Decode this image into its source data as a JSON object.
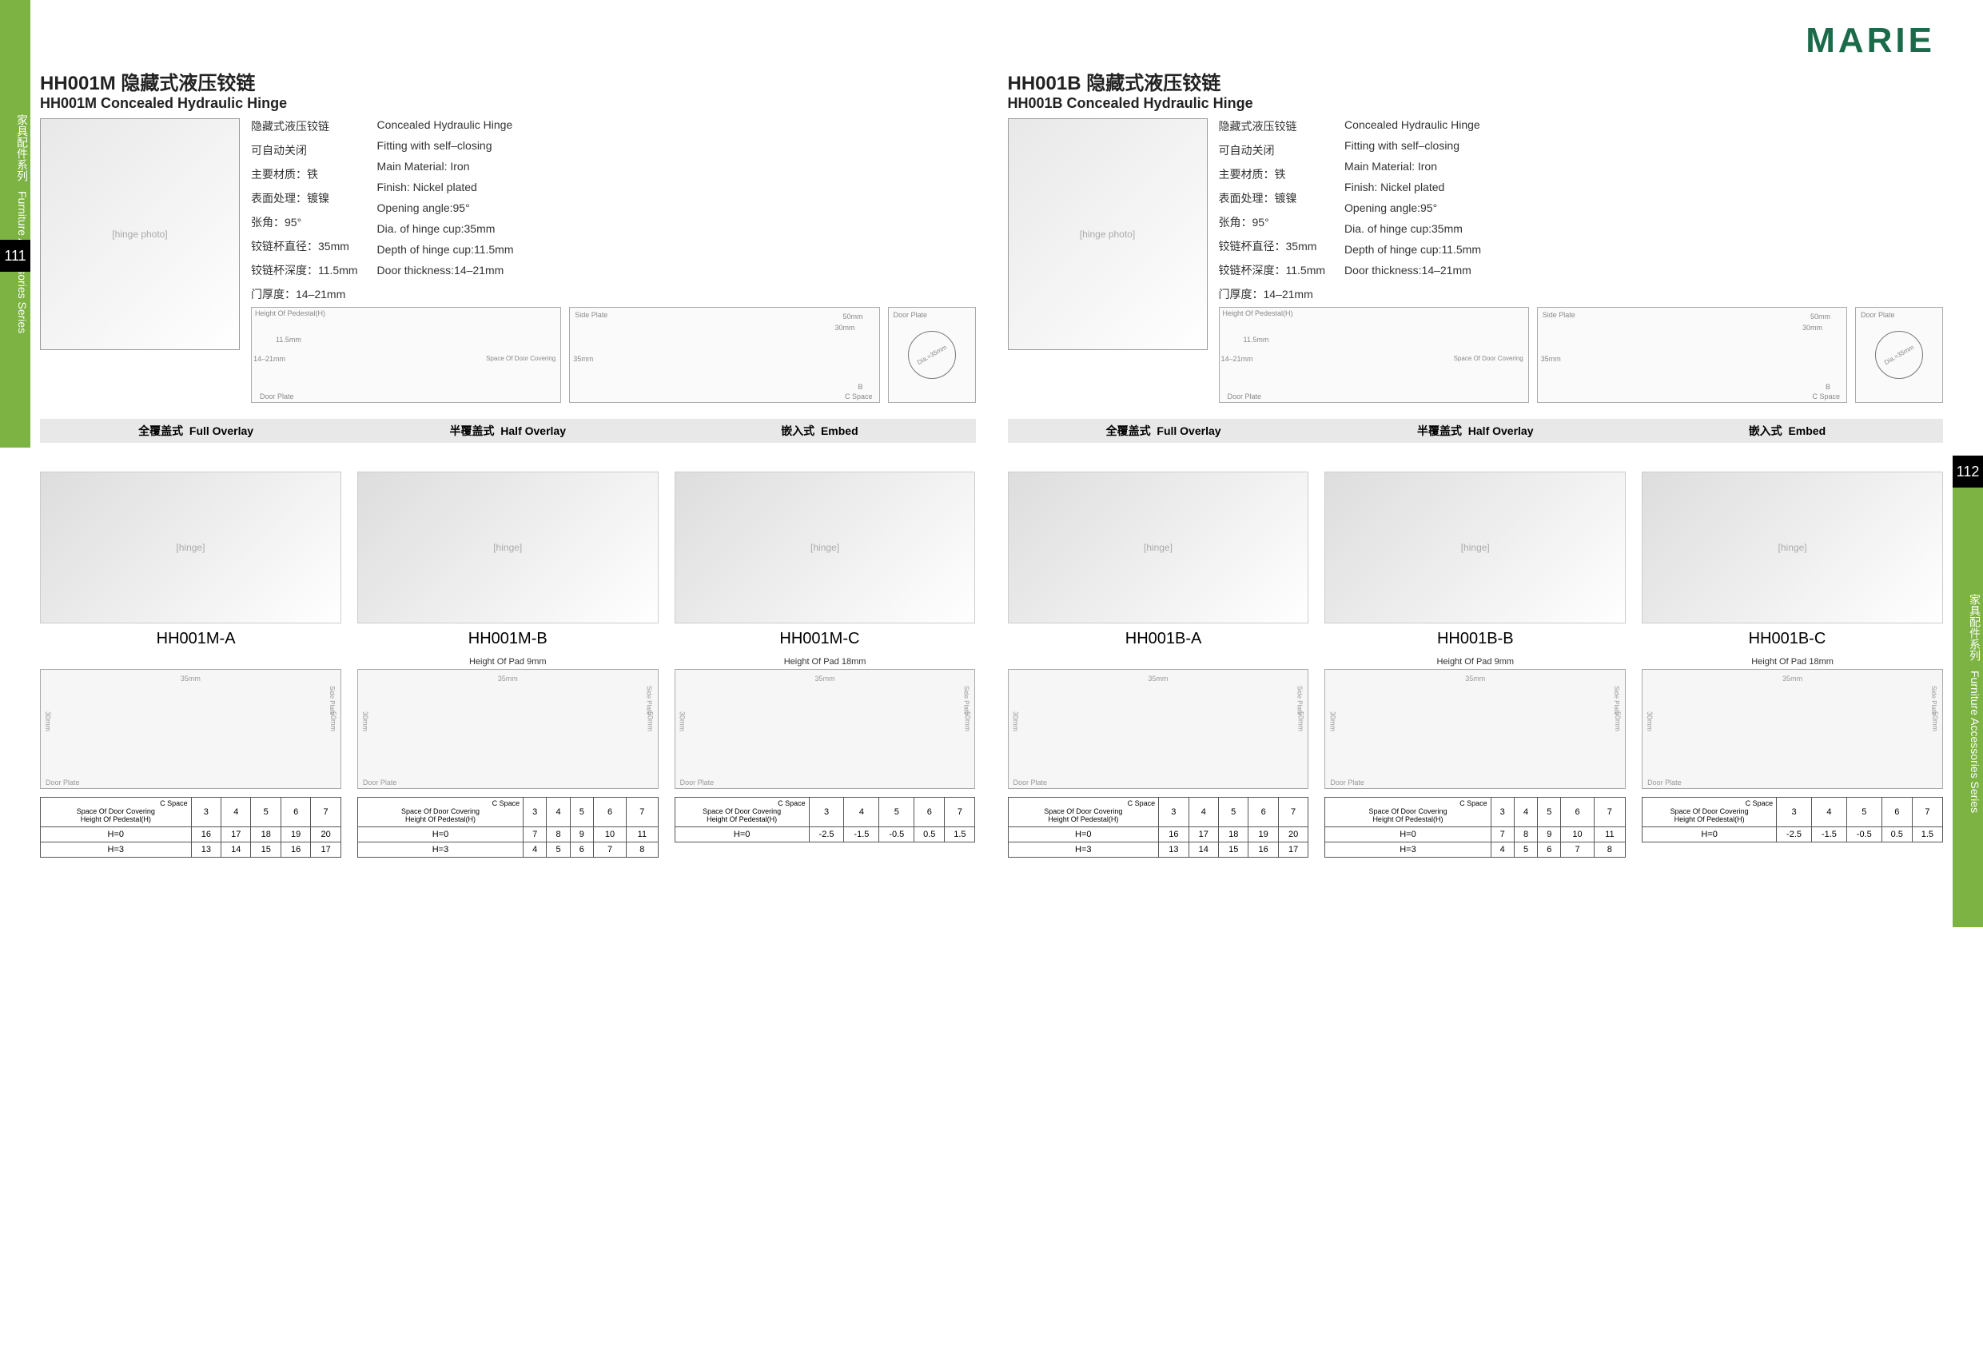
{
  "brand": "MARIE",
  "sidebar": {
    "label_cn": "家具配件系列",
    "label_en": "Furniture Accessories Series",
    "page_left": "111",
    "page_right": "112"
  },
  "colors": {
    "brand_green": "#1b6b4a",
    "tab_green": "#7cb342",
    "bar_gray": "#e8e8e8"
  },
  "products": [
    {
      "code": "HH001M",
      "title_cn": "HH001M 隐藏式液压铰链",
      "title_en": "HH001M Concealed Hydraulic Hinge",
      "specs_cn": [
        "隐藏式液压铰链",
        "可自动关闭",
        "主要材质：铁",
        "表面处理：镀镍",
        "张角：95°",
        "铰链杯直径：35mm",
        "铰链杯深度：11.5mm",
        "门厚度：14–21mm"
      ],
      "specs_en": [
        "Concealed Hydraulic Hinge",
        "Fitting  with self–closing",
        "Main Material:  Iron",
        "Finish: Nickel plated",
        "Opening angle:95°",
        "Dia. of hinge cup:35mm",
        "Depth of hinge cup:11.5mm",
        "Door thickness:14–21mm"
      ],
      "dims_diag": {
        "pedestal": "Height Of Pedestal(H)",
        "thick": "14–21mm",
        "cup": "11.5mm",
        "side_plate": "Side Plate",
        "door_plate": "Door Plate",
        "w1": "50mm",
        "w2": "30mm",
        "h": "35mm",
        "cspace": "C Space",
        "dia": "Dia.=35mm",
        "b": "B",
        "space_cover": "Space Of Door Covering"
      },
      "overlay_labels": [
        {
          "cn": "全覆盖式",
          "en": "Full Overlay"
        },
        {
          "cn": "半覆盖式",
          "en": "Half Overlay"
        },
        {
          "cn": "嵌入式",
          "en": "Embed"
        }
      ],
      "variants": [
        {
          "label": "HH001M-A",
          "pad": "",
          "diag_dims": {
            "w": "35mm",
            "h1": "30mm",
            "h2": "50mm"
          },
          "table": {
            "corner": [
              "Space Of Door Covering",
              "Height Of Pedestal(H)"
            ],
            "cspace": "C Space",
            "cols": [
              "3",
              "4",
              "5",
              "6",
              "7"
            ],
            "rows": [
              {
                "k": "H=0",
                "v": [
                  "16",
                  "17",
                  "18",
                  "19",
                  "20"
                ]
              },
              {
                "k": "H=3",
                "v": [
                  "13",
                  "14",
                  "15",
                  "16",
                  "17"
                ]
              }
            ]
          }
        },
        {
          "label": "HH001M-B",
          "pad": "Height Of Pad 9mm",
          "diag_dims": {
            "w": "35mm",
            "h1": "30mm",
            "h2": "50mm"
          },
          "table": {
            "corner": [
              "Space Of Door Covering",
              "Height Of Pedestal(H)"
            ],
            "cspace": "C Space",
            "cols": [
              "3",
              "4",
              "5",
              "6",
              "7"
            ],
            "rows": [
              {
                "k": "H=0",
                "v": [
                  "7",
                  "8",
                  "9",
                  "10",
                  "11"
                ]
              },
              {
                "k": "H=3",
                "v": [
                  "4",
                  "5",
                  "6",
                  "7",
                  "8"
                ]
              }
            ]
          }
        },
        {
          "label": "HH001M-C",
          "pad": "Height Of Pad 18mm",
          "diag_dims": {
            "w": "35mm",
            "h1": "30mm",
            "h2": "50mm"
          },
          "table": {
            "corner": [
              "Space Of Door Covering",
              "Height Of Pedestal(H)"
            ],
            "cspace": "C Space",
            "cols": [
              "3",
              "4",
              "5",
              "6",
              "7"
            ],
            "rows": [
              {
                "k": "H=0",
                "v": [
                  "-2.5",
                  "-1.5",
                  "-0.5",
                  "0.5",
                  "1.5"
                ]
              }
            ]
          }
        }
      ]
    },
    {
      "code": "HH001B",
      "title_cn": "HH001B 隐藏式液压铰链",
      "title_en": "HH001B Concealed Hydraulic Hinge",
      "specs_cn": [
        "隐藏式液压铰链",
        "可自动关闭",
        "主要材质：铁",
        "表面处理：镀镍",
        "张角：95°",
        "铰链杯直径：35mm",
        "铰链杯深度：11.5mm",
        "门厚度：14–21mm"
      ],
      "specs_en": [
        "Concealed Hydraulic Hinge",
        "Fitting with self–closing",
        "Main Material: Iron",
        "Finish: Nickel plated",
        "Opening angle:95°",
        "Dia. of hinge cup:35mm",
        "Depth of hinge cup:11.5mm",
        "Door thickness:14–21mm"
      ],
      "dims_diag": {
        "pedestal": "Height Of Pedestal(H)",
        "thick": "14–21mm",
        "cup": "11.5mm",
        "side_plate": "Side Plate",
        "door_plate": "Door Plate",
        "w1": "50mm",
        "w2": "30mm",
        "h": "35mm",
        "cspace": "C Space",
        "dia": "Dia.=35mm",
        "b": "B",
        "space_cover": "Space Of Door Covering"
      },
      "overlay_labels": [
        {
          "cn": "全覆盖式",
          "en": "Full Overlay"
        },
        {
          "cn": "半覆盖式",
          "en": "Half Overlay"
        },
        {
          "cn": "嵌入式",
          "en": "Embed"
        }
      ],
      "variants": [
        {
          "label": "HH001B-A",
          "pad": "",
          "diag_dims": {
            "w": "35mm",
            "h1": "30mm",
            "h2": "50mm"
          },
          "table": {
            "corner": [
              "Space Of Door Covering",
              "Height Of Pedestal(H)"
            ],
            "cspace": "C Space",
            "cols": [
              "3",
              "4",
              "5",
              "6",
              "7"
            ],
            "rows": [
              {
                "k": "H=0",
                "v": [
                  "16",
                  "17",
                  "18",
                  "19",
                  "20"
                ]
              },
              {
                "k": "H=3",
                "v": [
                  "13",
                  "14",
                  "15",
                  "16",
                  "17"
                ]
              }
            ]
          }
        },
        {
          "label": "HH001B-B",
          "pad": "Height Of Pad 9mm",
          "diag_dims": {
            "w": "35mm",
            "h1": "30mm",
            "h2": "50mm"
          },
          "table": {
            "corner": [
              "Space Of Door Covering",
              "Height Of Pedestal(H)"
            ],
            "cspace": "C Space",
            "cols": [
              "3",
              "4",
              "5",
              "6",
              "7"
            ],
            "rows": [
              {
                "k": "H=0",
                "v": [
                  "7",
                  "8",
                  "9",
                  "10",
                  "11"
                ]
              },
              {
                "k": "H=3",
                "v": [
                  "4",
                  "5",
                  "6",
                  "7",
                  "8"
                ]
              }
            ]
          }
        },
        {
          "label": "HH001B-C",
          "pad": "Height Of Pad 18mm",
          "diag_dims": {
            "w": "35mm",
            "h1": "30mm",
            "h2": "50mm"
          },
          "table": {
            "corner": [
              "Space Of Door Covering",
              "Height Of Pedestal(H)"
            ],
            "cspace": "C Space",
            "cols": [
              "3",
              "4",
              "5",
              "6",
              "7"
            ],
            "rows": [
              {
                "k": "H=0",
                "v": [
                  "-2.5",
                  "-1.5",
                  "-0.5",
                  "0.5",
                  "1.5"
                ]
              }
            ]
          }
        }
      ]
    }
  ]
}
